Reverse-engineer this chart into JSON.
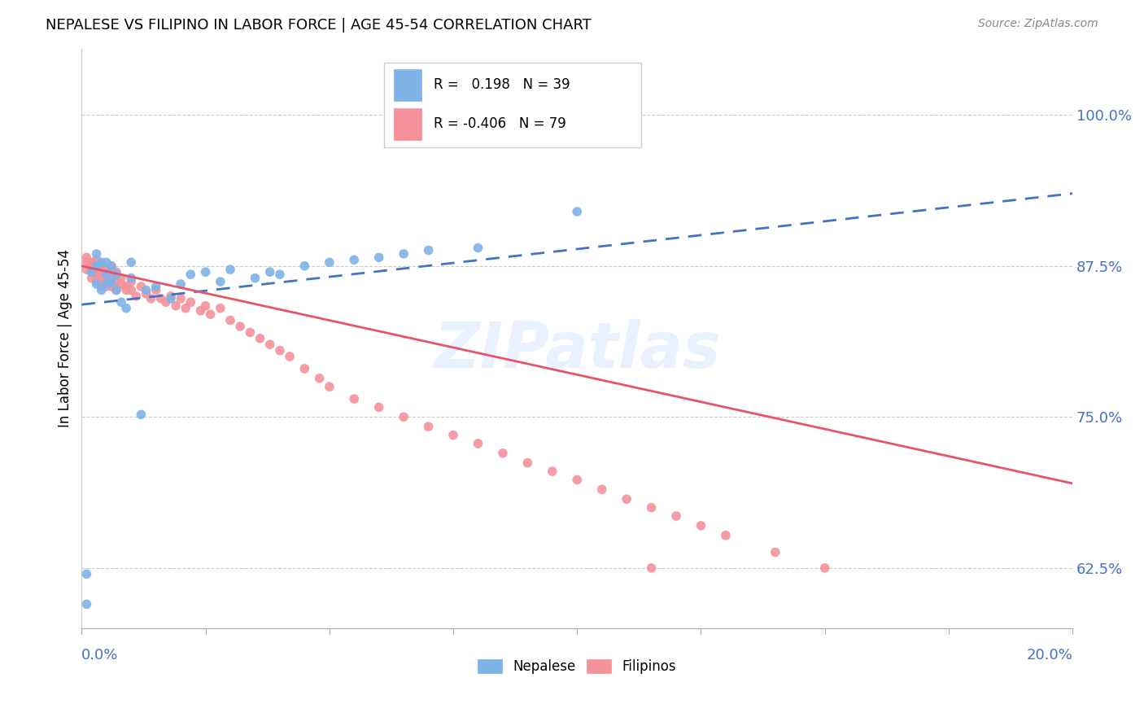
{
  "title": "NEPALESE VS FILIPINO IN LABOR FORCE | AGE 45-54 CORRELATION CHART",
  "source": "Source: ZipAtlas.com",
  "ylabel": "In Labor Force | Age 45-54",
  "ytick_labels": [
    "62.5%",
    "75.0%",
    "87.5%",
    "100.0%"
  ],
  "ytick_values": [
    0.625,
    0.75,
    0.875,
    1.0
  ],
  "xlim": [
    0.0,
    0.2
  ],
  "ylim": [
    0.575,
    1.055
  ],
  "nepalese_color": "#7EB3E8",
  "filipino_color": "#F4919B",
  "nepalese_line_color": "#4472C4",
  "filipino_line_color": "#E8536A",
  "watermark": "ZIPatlas",
  "nepalese_x": [
    0.001,
    0.001,
    0.002,
    0.003,
    0.003,
    0.003,
    0.004,
    0.004,
    0.005,
    0.005,
    0.005,
    0.006,
    0.006,
    0.007,
    0.007,
    0.008,
    0.009,
    0.01,
    0.01,
    0.012,
    0.013,
    0.015,
    0.018,
    0.02,
    0.022,
    0.025,
    0.028,
    0.03,
    0.035,
    0.038,
    0.04,
    0.045,
    0.05,
    0.055,
    0.06,
    0.065,
    0.07,
    0.08,
    0.1
  ],
  "nepalese_y": [
    0.595,
    0.62,
    0.87,
    0.86,
    0.875,
    0.885,
    0.855,
    0.878,
    0.86,
    0.868,
    0.878,
    0.862,
    0.875,
    0.855,
    0.868,
    0.845,
    0.84,
    0.865,
    0.878,
    0.752,
    0.855,
    0.858,
    0.848,
    0.86,
    0.868,
    0.87,
    0.862,
    0.872,
    0.865,
    0.87,
    0.868,
    0.875,
    0.878,
    0.88,
    0.882,
    0.885,
    0.888,
    0.89,
    0.92
  ],
  "filipino_x": [
    0.001,
    0.001,
    0.001,
    0.002,
    0.002,
    0.002,
    0.002,
    0.003,
    0.003,
    0.003,
    0.003,
    0.003,
    0.004,
    0.004,
    0.004,
    0.004,
    0.004,
    0.005,
    0.005,
    0.005,
    0.005,
    0.006,
    0.006,
    0.006,
    0.006,
    0.007,
    0.007,
    0.007,
    0.008,
    0.008,
    0.009,
    0.009,
    0.01,
    0.01,
    0.011,
    0.012,
    0.013,
    0.014,
    0.015,
    0.016,
    0.017,
    0.018,
    0.019,
    0.02,
    0.021,
    0.022,
    0.024,
    0.025,
    0.026,
    0.028,
    0.03,
    0.032,
    0.034,
    0.036,
    0.038,
    0.04,
    0.042,
    0.045,
    0.048,
    0.05,
    0.055,
    0.06,
    0.065,
    0.07,
    0.075,
    0.08,
    0.085,
    0.09,
    0.095,
    0.1,
    0.105,
    0.11,
    0.115,
    0.12,
    0.125,
    0.13,
    0.14,
    0.15,
    0.115
  ],
  "filipino_y": [
    0.882,
    0.878,
    0.872,
    0.875,
    0.87,
    0.865,
    0.878,
    0.868,
    0.862,
    0.87,
    0.875,
    0.88,
    0.865,
    0.87,
    0.876,
    0.862,
    0.858,
    0.868,
    0.862,
    0.872,
    0.858,
    0.87,
    0.865,
    0.875,
    0.858,
    0.862,
    0.87,
    0.855,
    0.86,
    0.865,
    0.858,
    0.855,
    0.862,
    0.855,
    0.85,
    0.858,
    0.852,
    0.848,
    0.855,
    0.848,
    0.845,
    0.85,
    0.842,
    0.848,
    0.84,
    0.845,
    0.838,
    0.842,
    0.835,
    0.84,
    0.83,
    0.825,
    0.82,
    0.815,
    0.81,
    0.805,
    0.8,
    0.79,
    0.782,
    0.775,
    0.765,
    0.758,
    0.75,
    0.742,
    0.735,
    0.728,
    0.72,
    0.712,
    0.705,
    0.698,
    0.69,
    0.682,
    0.675,
    0.668,
    0.66,
    0.652,
    0.638,
    0.625,
    0.625
  ]
}
